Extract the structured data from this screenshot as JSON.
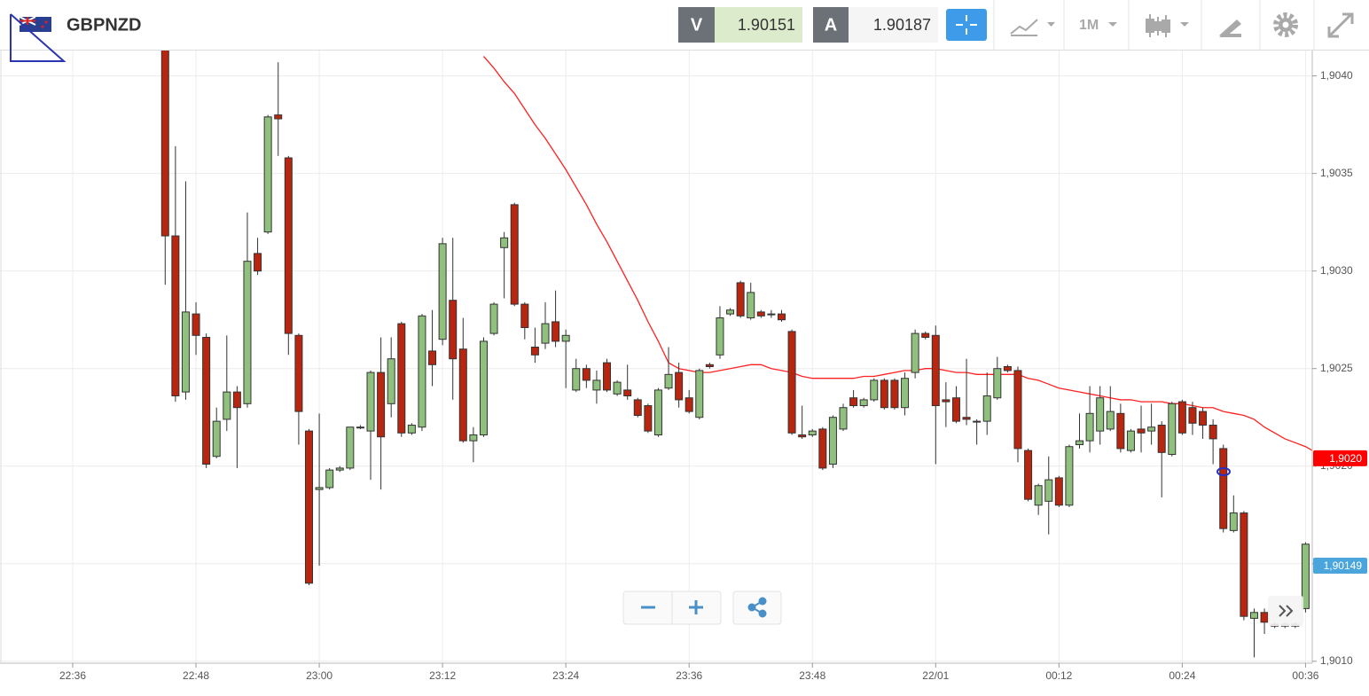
{
  "toolbar": {
    "symbol": "GBPNZD",
    "bid_tag": "V",
    "bid": "1.90151",
    "ask_tag": "A",
    "ask": "1.90187",
    "period": "1M"
  },
  "chart_data": {
    "type": "candlestick",
    "categories": [
      "22:36",
      null,
      null,
      null,
      null,
      null,
      null,
      null,
      null,
      null,
      null,
      null,
      "22:48",
      null,
      null,
      null,
      null,
      null,
      null,
      null,
      null,
      null,
      null,
      null,
      "23:00",
      null,
      null,
      null,
      null,
      null,
      null,
      null,
      null,
      null,
      null,
      null,
      "23:12",
      null,
      null,
      null,
      null,
      null,
      null,
      null,
      null,
      null,
      null,
      null,
      "23:24",
      null,
      null,
      null,
      null,
      null,
      null,
      null,
      null,
      null,
      null,
      null,
      "23:36",
      null,
      null,
      null,
      null,
      null,
      null,
      null,
      null,
      null,
      null,
      null,
      "23:48",
      null,
      null,
      null,
      null,
      null,
      null,
      null,
      null,
      null,
      null,
      null,
      "22/01",
      null,
      null,
      null,
      null,
      null,
      null,
      null,
      null,
      null,
      null,
      null,
      "00:12",
      null,
      null,
      null,
      null,
      null,
      null,
      null,
      null,
      null,
      null,
      null,
      "00:24",
      null,
      null,
      null,
      null,
      null,
      null,
      null,
      null,
      null,
      null,
      null,
      "00:36",
      null
    ],
    "open": [
      null,
      null,
      null,
      null,
      null,
      null,
      null,
      null,
      null,
      1.9042,
      1.90318,
      1.90238,
      1.90278,
      1.90266,
      1.90205,
      1.90224,
      1.90238,
      1.90232,
      1.90309,
      1.9032,
      1.9038,
      1.90358,
      1.90267,
      1.90218,
      1.90188,
      1.90189,
      1.90198,
      1.90199,
      1.9022,
      1.90218,
      1.90248,
      1.90232,
      1.90273,
      1.90217,
      1.9022,
      1.90259,
      1.90265,
      1.90285,
      1.9026,
      1.90213,
      1.90216,
      1.90268,
      1.90312,
      1.90334,
      1.90283,
      1.90261,
      1.90263,
      1.90274,
      1.90264,
      1.90239,
      1.9025,
      1.90239,
      1.90253,
      1.90237,
      1.90239,
      1.90234,
      1.90231,
      1.90216,
      1.9024,
      1.90248,
      1.90235,
      1.90225,
      1.90252,
      1.90257,
      1.90278,
      1.90294,
      1.90276,
      1.90279,
      1.90278,
      1.90278,
      1.90269,
      1.90216,
      1.90216,
      1.90219,
      1.90201,
      1.90219,
      1.90235,
      1.90231,
      1.90234,
      1.90244,
      1.90244,
      1.9023,
      1.90248,
      1.90268,
      1.90267,
      1.90234,
      1.90235,
      1.90225,
      1.90223,
      1.90223,
      1.90235,
      1.90251,
      1.90249,
      1.90208,
      1.9018,
      1.90182,
      1.90194,
      1.9018,
      1.90211,
      1.90213,
      1.90218,
      1.90219,
      1.90227,
      1.90208,
      1.90219,
      1.90218,
      1.90221,
      1.90206,
      1.90233,
      1.9023,
      1.90228,
      1.90221,
      1.90209,
      1.90167,
      1.90176,
      1.90122,
      1.90125,
      1.90119,
      1.90118,
      1.90118,
      1.90127,
      null
    ],
    "high": [
      null,
      null,
      null,
      null,
      null,
      null,
      null,
      null,
      null,
      1.90425,
      1.90364,
      1.90346,
      1.90284,
      1.90268,
      1.9023,
      1.90267,
      1.90241,
      1.9033,
      1.90317,
      1.9038,
      1.90407,
      1.90359,
      1.90268,
      1.90219,
      1.90227,
      1.90199,
      1.902,
      1.9022,
      1.90221,
      1.90249,
      1.90266,
      1.90266,
      1.90274,
      1.90222,
      1.90278,
      1.9028,
      1.90317,
      1.90317,
      1.90276,
      1.9022,
      1.90266,
      1.90284,
      1.9032,
      1.90335,
      1.90284,
      1.90271,
      1.90284,
      1.9029,
      1.9027,
      1.90255,
      1.90252,
      1.90249,
      1.90255,
      1.90244,
      1.90252,
      1.90235,
      1.90232,
      1.9024,
      1.90261,
      1.90253,
      1.90239,
      1.9025,
      1.90253,
      1.90282,
      1.90281,
      1.90295,
      1.90294,
      1.9028,
      1.9028,
      1.9028,
      1.9027,
      1.90231,
      1.90219,
      1.9022,
      1.90226,
      1.90232,
      1.90239,
      1.90235,
      1.90245,
      1.90245,
      1.90245,
      1.90248,
      1.9027,
      1.90269,
      1.90272,
      1.90243,
      1.90241,
      1.90255,
      1.90224,
      1.90248,
      1.90256,
      1.90252,
      1.90251,
      1.90209,
      1.90191,
      1.90205,
      1.90195,
      1.90211,
      1.90227,
      1.90241,
      1.90241,
      1.90241,
      1.90232,
      1.90219,
      1.90231,
      1.90232,
      1.90223,
      1.90233,
      1.90234,
      1.90233,
      1.9023,
      1.90224,
      1.90211,
      1.90185,
      1.90177,
      1.90127,
      1.90127,
      1.9012,
      1.9012,
      1.9012,
      1.90161,
      null
    ],
    "low": [
      null,
      null,
      null,
      null,
      null,
      null,
      null,
      null,
      null,
      1.90293,
      1.90233,
      1.90234,
      1.90257,
      1.90199,
      1.90204,
      1.90218,
      1.90199,
      1.9023,
      1.90298,
      1.90319,
      1.90359,
      1.90257,
      1.90211,
      1.90139,
      1.90149,
      1.90188,
      1.90197,
      1.90198,
      1.90219,
      1.90193,
      1.90188,
      1.90225,
      1.90215,
      1.90216,
      1.90218,
      1.90241,
      1.90262,
      1.90234,
      1.90212,
      1.90202,
      1.90215,
      1.90267,
      1.90286,
      1.90282,
      1.90265,
      1.90253,
      1.9026,
      1.90261,
      1.9024,
      1.90238,
      1.9024,
      1.90232,
      1.90238,
      1.90236,
      1.90234,
      1.90225,
      1.90217,
      1.90215,
      1.90239,
      1.9023,
      1.90227,
      1.90224,
      1.9025,
      1.90255,
      1.90277,
      1.90276,
      1.90275,
      1.90276,
      1.90276,
      1.90274,
      1.90216,
      1.90214,
      1.90215,
      1.90198,
      1.90199,
      1.90218,
      1.9023,
      1.9023,
      1.90233,
      1.90229,
      1.90229,
      1.90226,
      1.90245,
      1.90265,
      1.90201,
      1.9022,
      1.90222,
      1.90221,
      1.90211,
      1.90216,
      1.90234,
      1.90248,
      1.90202,
      1.90182,
      1.90175,
      1.90165,
      1.90179,
      1.90179,
      1.90209,
      1.90207,
      1.90211,
      1.90218,
      1.90207,
      1.90207,
      1.90207,
      1.90211,
      1.90184,
      1.90205,
      1.90216,
      1.90216,
      1.90214,
      1.90201,
      1.90166,
      1.90166,
      1.90121,
      1.90102,
      1.90114,
      1.90117,
      1.90117,
      1.90117,
      1.90125,
      null
    ],
    "close": [
      null,
      null,
      null,
      null,
      null,
      null,
      null,
      null,
      null,
      1.90318,
      1.90236,
      1.90279,
      1.90267,
      1.90201,
      1.90223,
      1.90238,
      1.9023,
      1.90305,
      1.903,
      1.90379,
      1.90378,
      1.90268,
      1.90228,
      1.9014,
      1.90189,
      1.90198,
      1.90199,
      1.9022,
      1.9022,
      1.90248,
      1.90215,
      1.90255,
      1.90217,
      1.90221,
      1.90277,
      1.90252,
      1.90314,
      1.90255,
      1.90213,
      1.90216,
      1.90264,
      1.90283,
      1.90317,
      1.90283,
      1.90271,
      1.90257,
      1.90273,
      1.90264,
      1.90267,
      1.9025,
      1.90244,
      1.90244,
      1.90239,
      1.90243,
      1.90236,
      1.90226,
      1.90218,
      1.90239,
      1.90247,
      1.90234,
      1.90228,
      1.90249,
      1.90251,
      1.90276,
      1.9028,
      1.90277,
      1.90289,
      1.90277,
      1.90278,
      1.90275,
      1.90217,
      1.90215,
      1.90218,
      1.90199,
      1.90225,
      1.9023,
      1.90231,
      1.90234,
      1.90244,
      1.9023,
      1.9023,
      1.90245,
      1.90268,
      1.90266,
      1.90231,
      1.90233,
      1.90223,
      1.90224,
      1.90223,
      1.90236,
      1.9025,
      1.90249,
      1.90209,
      1.90183,
      1.9019,
      1.90193,
      1.9018,
      1.9021,
      1.90213,
      1.90227,
      1.90235,
      1.90228,
      1.90209,
      1.90218,
      1.90217,
      1.9022,
      1.90207,
      1.90232,
      1.90217,
      1.90222,
      1.90221,
      1.90214,
      1.90168,
      1.90176,
      1.90123,
      1.90125,
      1.9012,
      1.90118,
      1.90119,
      1.90119,
      1.9016,
      null
    ],
    "up_color": "#8fc07e",
    "down_color": "#b8260f",
    "wick_color": "#333333",
    "moving_average": {
      "color": "#ff2020",
      "values": [
        null,
        null,
        null,
        null,
        null,
        null,
        null,
        null,
        null,
        null,
        null,
        null,
        null,
        null,
        null,
        null,
        null,
        null,
        null,
        null,
        null,
        null,
        null,
        null,
        null,
        null,
        null,
        null,
        null,
        null,
        null,
        null,
        null,
        null,
        null,
        null,
        null,
        null,
        null,
        null,
        1.9041,
        1.90404,
        1.90397,
        1.90391,
        1.90383,
        1.90375,
        1.90368,
        1.9036,
        1.90352,
        1.90343,
        1.90334,
        1.90324,
        1.90315,
        1.90305,
        1.90295,
        1.90285,
        1.90274,
        1.90264,
        1.90253,
        1.9025,
        1.90249,
        1.90248,
        1.90248,
        1.90249,
        1.9025,
        1.90251,
        1.90252,
        1.90252,
        1.9025,
        1.90249,
        1.90248,
        1.90246,
        1.90245,
        1.90245,
        1.90245,
        1.90245,
        1.90245,
        1.90246,
        1.90246,
        1.90247,
        1.90248,
        1.90249,
        1.90249,
        1.9025,
        1.9025,
        1.90249,
        1.90248,
        1.90248,
        1.90247,
        1.90247,
        1.90247,
        1.90247,
        1.90247,
        1.90245,
        1.90244,
        1.90242,
        1.9024,
        1.90239,
        1.90238,
        1.90237,
        1.90236,
        1.90235,
        1.90234,
        1.90234,
        1.90233,
        1.90233,
        1.90233,
        1.90232,
        1.90232,
        1.90231,
        1.9023,
        1.9023,
        1.90228,
        1.90227,
        1.90226,
        1.90224,
        1.9022,
        1.90217,
        1.90214,
        1.90212,
        1.9021,
        1.90207
      ]
    },
    "price_labels": [
      {
        "value": 1.90204,
        "label": "1,9020",
        "color": "#ff0000"
      },
      {
        "value": 1.90149,
        "label": "1,90149",
        "color": "#4aa5dc"
      }
    ],
    "ylim": [
      1.90099,
      1.90413
    ],
    "yticks": [
      {
        "value": 1.901,
        "label": "1,9010"
      },
      {
        "value": 1.9015,
        "label": "1,9015"
      },
      {
        "value": 1.902,
        "label": "1,9020"
      },
      {
        "value": 1.9025,
        "label": "1,9025"
      },
      {
        "value": 1.903,
        "label": "1,9030"
      },
      {
        "value": 1.9035,
        "label": "1,9035"
      },
      {
        "value": 1.904,
        "label": "1,9040"
      }
    ],
    "grid": true
  }
}
